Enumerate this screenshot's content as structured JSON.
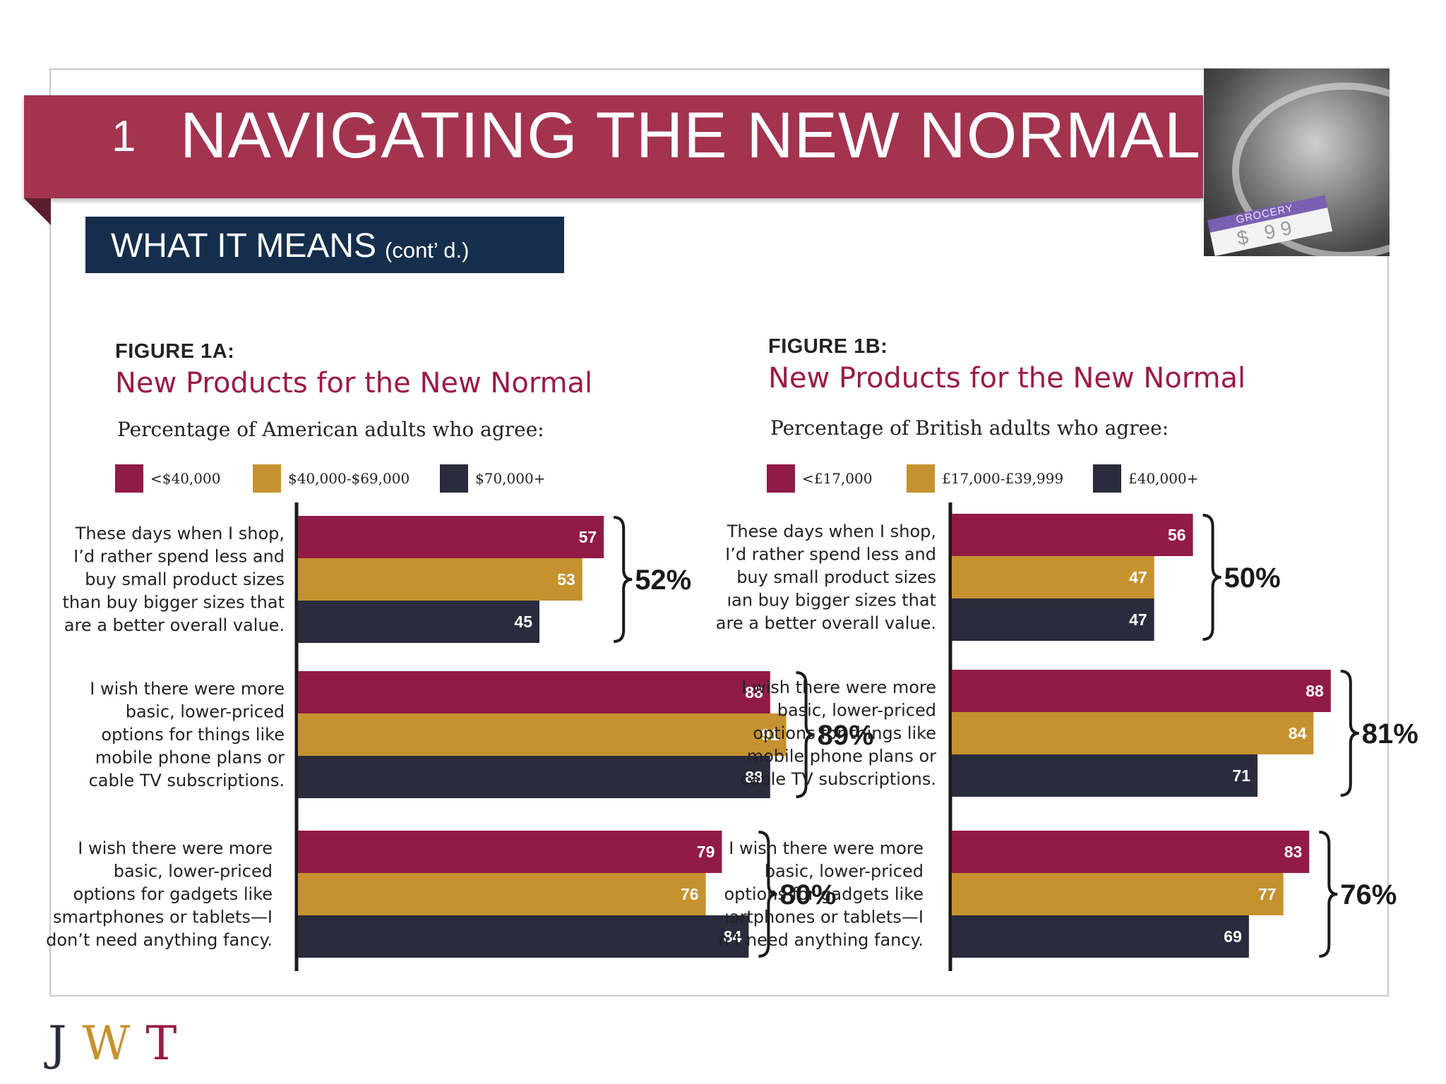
{
  "slide": {
    "section_number": "1",
    "section_title": "NAVIGATING THE NEW NORMAL",
    "subheading": "WHAT IT MEANS",
    "subheading_cont": "(cont’ d.)",
    "photo": {
      "label_text": "GROCERY",
      "price_text": "$ 99"
    }
  },
  "logo": {
    "letters": [
      "J",
      "W",
      "T"
    ]
  },
  "colors": {
    "banner": "#a3334f",
    "subhead": "#152e4b",
    "crimson": "#911a47",
    "gold": "#c6922f",
    "navy": "#2a2b3d",
    "title_red": "#9b1b45"
  },
  "chart_data": [
    {
      "type": "bar",
      "orientation": "horizontal",
      "figure_label": "FIGURE 1A:",
      "title": "New Products for the New Normal",
      "subtitle": "Percentage of American adults who agree:",
      "legend": [
        "<$40,000",
        "$40,000-$69,000",
        "$70,000+"
      ],
      "legend_placement": "top",
      "categories": [
        [
          "These days when I shop,",
          "I’d rather spend less and",
          "buy small product sizes",
          "than buy bigger sizes that",
          "are a better overall value."
        ],
        [
          "I wish there were more",
          "basic, lower-priced",
          "options for things like",
          "mobile phone plans or",
          "cable TV subscriptions."
        ],
        [
          "I wish there were more",
          "basic, lower-priced",
          "options for gadgets like",
          "smartphones or tablets—I",
          "don’t need anything fancy."
        ]
      ],
      "series": [
        {
          "name": "<$40,000",
          "values": [
            57,
            88,
            79
          ]
        },
        {
          "name": "$40,000-$69,000",
          "values": [
            53,
            91,
            76
          ]
        },
        {
          "name": "$70,000+",
          "values": [
            45,
            88,
            84
          ]
        }
      ],
      "group_totals": [
        "52%",
        "89%",
        "80%"
      ],
      "xlim": [
        0,
        100
      ],
      "grid": false
    },
    {
      "type": "bar",
      "orientation": "horizontal",
      "figure_label": "FIGURE 1B:",
      "title": "New Products for the New Normal",
      "subtitle": "Percentage of British adults who agree:",
      "legend": [
        "<£17,000",
        "£17,000-£39,999",
        "£40,000+"
      ],
      "legend_placement": "top",
      "categories": [
        [
          "These days when I shop,",
          "I’d rather spend less and",
          "buy small product sizes",
          "ıan buy bigger sizes that",
          "are a better overall value."
        ],
        [
          "I wish there were more",
          "basic, lower-priced",
          "options for things like",
          "mobile phone plans or",
          "cable TV subscriptions."
        ],
        [
          "I wish there were more",
          "basic, lower-priced",
          "options for gadgets like",
          "ıartphones or tablets—I",
          "n’t need anything fancy."
        ]
      ],
      "series": [
        {
          "name": "<£17,000",
          "values": [
            56,
            88,
            83
          ]
        },
        {
          "name": "£17,000-£39,999",
          "values": [
            47,
            84,
            77
          ]
        },
        {
          "name": "£40,000+",
          "values": [
            47,
            71,
            69
          ]
        }
      ],
      "group_totals": [
        "50%",
        "81%",
        "76%"
      ],
      "xlim": [
        0,
        100
      ],
      "grid": false
    }
  ]
}
